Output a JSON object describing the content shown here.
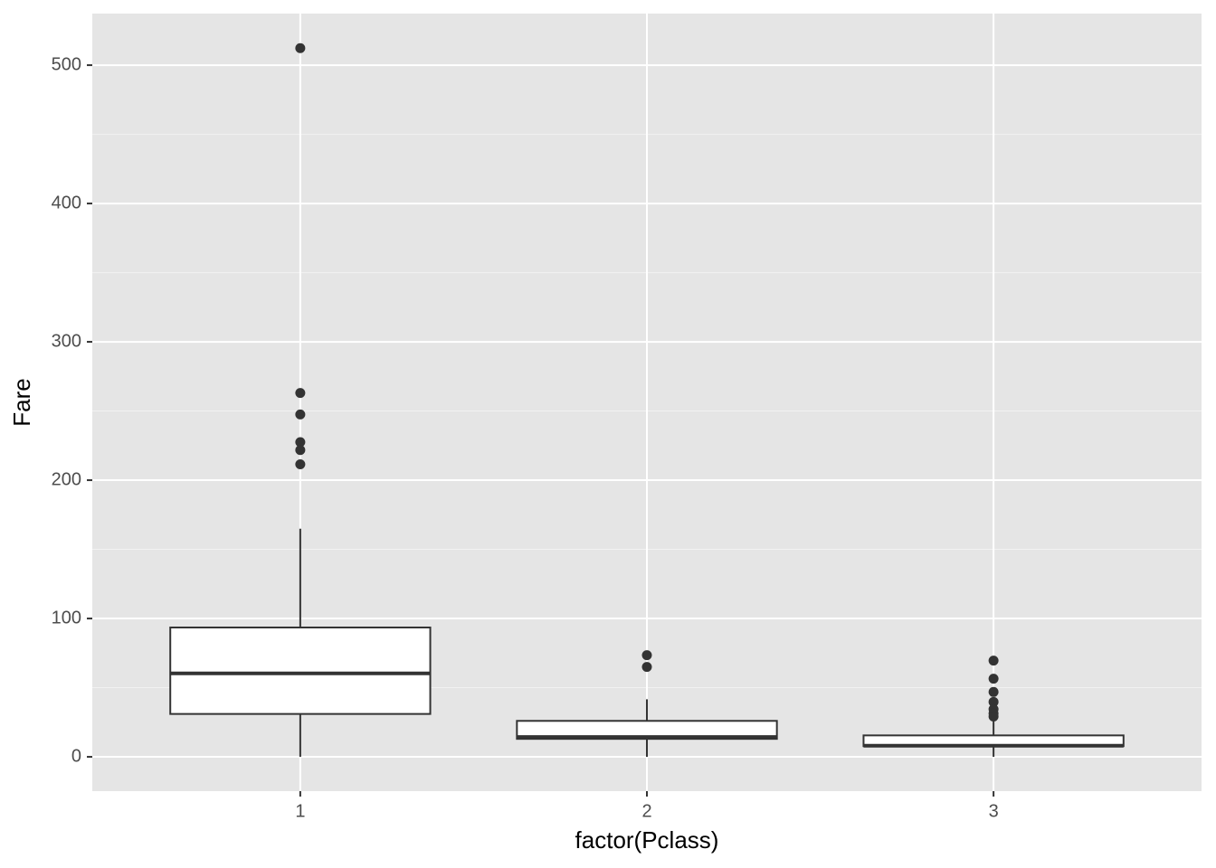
{
  "chart_data": {
    "type": "boxplot",
    "x_label": "factor(Pclass)",
    "y_label": "Fare",
    "categories": [
      "1",
      "2",
      "3"
    ],
    "boxes": [
      {
        "min": 0,
        "q1": 31,
        "median": 60.3,
        "q3": 93.5,
        "max": 164.9,
        "outliers": [
          512.3,
          263,
          247.5,
          227.5,
          221.8,
          211.5
        ]
      },
      {
        "min": 0,
        "q1": 13,
        "median": 14.3,
        "q3": 26,
        "max": 41.6,
        "outliers": [
          73.5,
          65
        ]
      },
      {
        "min": 0,
        "q1": 7.75,
        "median": 8.05,
        "q3": 15.5,
        "max": 27.9,
        "outliers": [
          69.55,
          56.5,
          46.9,
          39.7,
          34.4,
          31.3,
          29.1
        ]
      }
    ],
    "color": "#333333",
    "fill": "#ffffff",
    "ylim": [
      -24.8,
      537.3
    ],
    "yticks": [
      0,
      100,
      200,
      300,
      400,
      500
    ],
    "grid": true
  }
}
